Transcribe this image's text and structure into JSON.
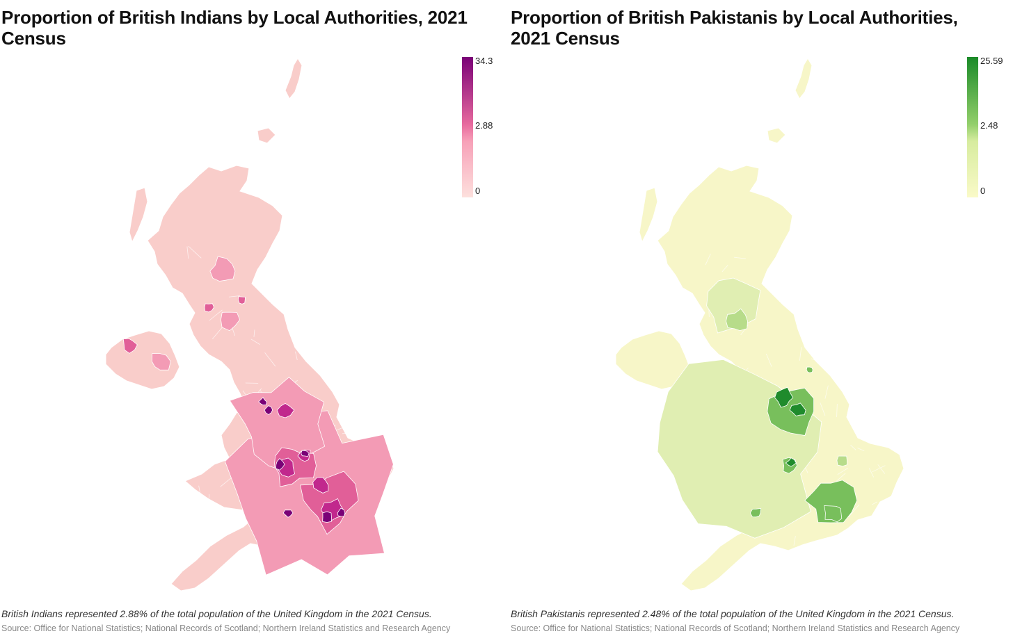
{
  "panels": [
    {
      "title": "Proportion of British Indians by Local Authorities, 2021 Census",
      "legend": {
        "max": "34.3",
        "mid": "2.88",
        "min": "0",
        "colors": [
          "#fde0dd",
          "#f7a1b8",
          "#e76a9e",
          "#7a0177"
        ]
      },
      "note": "British Indians represented 2.88% of the total population of the United Kingdom in the 2021 Census.",
      "source": "Source: Office for National Statistics; National Records of Scotland; Northern Ireland Statistics and Research Agency",
      "base_color": "#f9cdca",
      "hotspot_colors": [
        "#f39bb5",
        "#e15f98",
        "#c1288d",
        "#7a0177"
      ]
    },
    {
      "title": "Proportion of British Pakistanis by Local Authorities, 2021 Census",
      "legend": {
        "max": "25.59",
        "mid": "2.48",
        "min": "0",
        "colors": [
          "#fafac8",
          "#d7ec9f",
          "#93cf6b",
          "#1a8a28"
        ]
      },
      "note": "British Pakistanis represented 2.48% of the total population of the United Kingdom in the 2021 Census.",
      "source": "Source: Office for National Statistics; National Records of Scotland; Northern Ireland Statistics and Research Agency",
      "base_color": "#f7f6c8",
      "hotspot_colors": [
        "#e0eeb2",
        "#b7dc8a",
        "#78bf5c",
        "#1f8b2c"
      ]
    }
  ]
}
